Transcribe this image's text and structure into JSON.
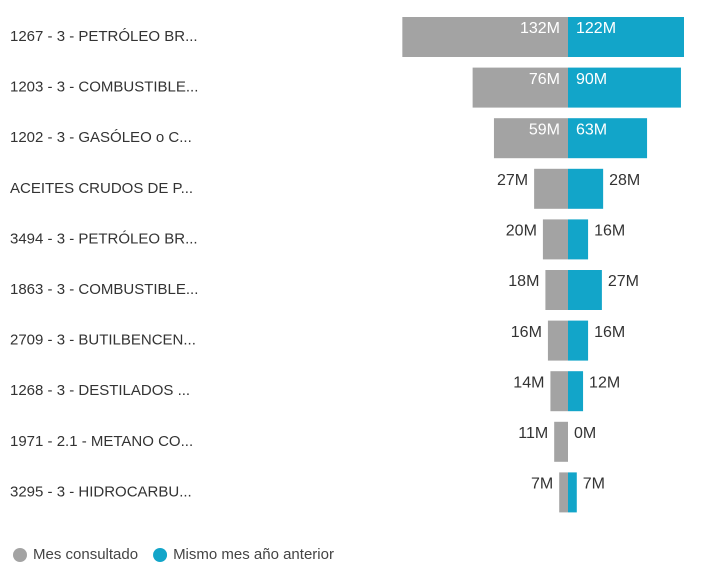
{
  "chart_data": {
    "type": "diverging-bar",
    "categories": [
      "1267 - 3 - PETRÓLEO BR...",
      "1203 - 3 - COMBUSTIBLE...",
      "1202 - 3 - GASÓLEO o C...",
      "ACEITES CRUDOS DE P...",
      "3494 - 3 - PETRÓLEO BR...",
      "1863 - 3 - COMBUSTIBLE...",
      "2709 - 3 - BUTILBENCEN...",
      "1268 - 3 - DESTILADOS ...",
      "1971 - 2.1 - METANO CO...",
      "3295 - 3 - HIDROCARBU..."
    ],
    "series": [
      {
        "name": "Mes consultado",
        "color": "#a3a3a3",
        "values": [
          132,
          76,
          59,
          27,
          20,
          18,
          16,
          14,
          11,
          7
        ],
        "value_labels": [
          "132M",
          "76M",
          "59M",
          "27M",
          "20M",
          "18M",
          "16M",
          "14M",
          "11M",
          "7M"
        ]
      },
      {
        "name": "Mismo mes año anterior",
        "color": "#12a5c9",
        "values": [
          122,
          90,
          63,
          28,
          16,
          27,
          16,
          12,
          0,
          7
        ],
        "value_labels": [
          "122M",
          "90M",
          "63M",
          "28M",
          "16M",
          "27M",
          "16M",
          "12M",
          "0M",
          "7M"
        ]
      }
    ]
  }
}
